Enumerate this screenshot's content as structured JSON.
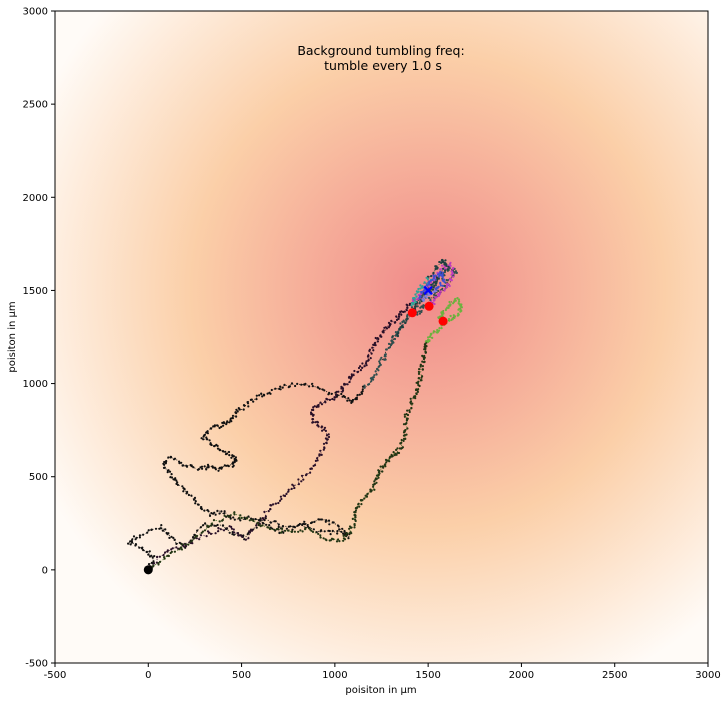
{
  "chart_data": {
    "type": "scatter",
    "title": "",
    "xlabel": "poisiton in µm",
    "ylabel": "poisiton in µm",
    "xlim": [
      -500,
      3000
    ],
    "ylim": [
      -500,
      3000
    ],
    "xticks": [
      -500,
      0,
      500,
      1000,
      1500,
      2000,
      2500,
      3000
    ],
    "yticks": [
      -500,
      0,
      500,
      1000,
      1500,
      2000,
      2500,
      3000
    ],
    "grid": false,
    "annotation_lines": [
      "Background tumbling freq:",
      "tumble every 1.0 s"
    ],
    "background": {
      "kind": "radial-gradient",
      "center": [
        1500,
        1500
      ],
      "inner_color": "#f08a8a",
      "mid_color": "#fbcfa8",
      "outer_color": "#fffbf7"
    },
    "target": {
      "x": 1500,
      "y": 1500,
      "marker": "X",
      "color": "#0000ff"
    },
    "start": {
      "x": 0,
      "y": 0,
      "color": "#000000"
    },
    "end_points": [
      {
        "x": 1415,
        "y": 1380,
        "color": "#ff0000"
      },
      {
        "x": 1505,
        "y": 1415,
        "color": "#ff0000"
      },
      {
        "x": 1580,
        "y": 1335,
        "color": "#ff0000"
      }
    ],
    "series": [
      {
        "color": "#1c1c1c",
        "dark_color": "#111111",
        "light_color": "#2f4f4f",
        "points": [
          [
            0,
            0
          ],
          [
            30,
            60
          ],
          [
            -20,
            110
          ],
          [
            -110,
            150
          ],
          [
            -40,
            190
          ],
          [
            70,
            230
          ],
          [
            120,
            170
          ],
          [
            200,
            120
          ],
          [
            290,
            240
          ],
          [
            380,
            240
          ],
          [
            460,
            200
          ],
          [
            520,
            170
          ],
          [
            610,
            260
          ],
          [
            700,
            200
          ],
          [
            820,
            230
          ],
          [
            950,
            200
          ],
          [
            1040,
            200
          ],
          [
            1080,
            180
          ],
          [
            1010,
            240
          ],
          [
            920,
            270
          ],
          [
            820,
            240
          ],
          [
            720,
            230
          ],
          [
            640,
            270
          ],
          [
            560,
            280
          ],
          [
            470,
            270
          ],
          [
            400,
            310
          ],
          [
            330,
            300
          ],
          [
            260,
            350
          ],
          [
            210,
            420
          ],
          [
            150,
            470
          ],
          [
            110,
            520
          ],
          [
            80,
            580
          ],
          [
            130,
            600
          ],
          [
            200,
            560
          ],
          [
            280,
            540
          ],
          [
            330,
            560
          ],
          [
            380,
            540
          ],
          [
            440,
            560
          ],
          [
            470,
            590
          ],
          [
            430,
            620
          ],
          [
            380,
            650
          ],
          [
            330,
            680
          ],
          [
            290,
            720
          ],
          [
            330,
            760
          ],
          [
            400,
            780
          ],
          [
            440,
            800
          ],
          [
            470,
            840
          ],
          [
            520,
            880
          ],
          [
            580,
            930
          ],
          [
            660,
            960
          ],
          [
            750,
            990
          ],
          [
            850,
            1000
          ],
          [
            950,
            960
          ],
          [
            1040,
            930
          ],
          [
            1100,
            900
          ],
          [
            1140,
            950
          ],
          [
            1180,
            1000
          ],
          [
            1210,
            1050
          ],
          [
            1240,
            1100
          ],
          [
            1270,
            1150
          ],
          [
            1300,
            1210
          ],
          [
            1320,
            1250
          ],
          [
            1350,
            1300
          ],
          [
            1380,
            1350
          ],
          [
            1430,
            1410
          ],
          [
            1470,
            1460
          ],
          [
            1500,
            1500
          ],
          [
            1560,
            1560
          ],
          [
            1610,
            1620
          ],
          [
            1650,
            1600
          ],
          [
            1600,
            1540
          ],
          [
            1540,
            1480
          ],
          [
            1480,
            1420
          ],
          [
            1450,
            1380
          ],
          [
            1415,
            1380
          ]
        ]
      },
      {
        "color": "#3b1f3a",
        "dark_color": "#2a1028",
        "light_color": "#c03cc0",
        "points": [
          [
            0,
            0
          ],
          [
            60,
            80
          ],
          [
            160,
            120
          ],
          [
            230,
            150
          ],
          [
            330,
            200
          ],
          [
            440,
            230
          ],
          [
            520,
            170
          ],
          [
            590,
            250
          ],
          [
            650,
            330
          ],
          [
            720,
            390
          ],
          [
            780,
            450
          ],
          [
            850,
            520
          ],
          [
            900,
            590
          ],
          [
            940,
            650
          ],
          [
            960,
            720
          ],
          [
            930,
            770
          ],
          [
            880,
            800
          ],
          [
            870,
            850
          ],
          [
            920,
            890
          ],
          [
            980,
            920
          ],
          [
            1030,
            960
          ],
          [
            1060,
            1000
          ],
          [
            1100,
            1050
          ],
          [
            1150,
            1090
          ],
          [
            1180,
            1140
          ],
          [
            1200,
            1190
          ],
          [
            1230,
            1240
          ],
          [
            1260,
            1280
          ],
          [
            1300,
            1320
          ],
          [
            1340,
            1360
          ],
          [
            1380,
            1400
          ],
          [
            1420,
            1440
          ],
          [
            1460,
            1480
          ],
          [
            1500,
            1530
          ],
          [
            1540,
            1580
          ],
          [
            1580,
            1620
          ],
          [
            1620,
            1640
          ],
          [
            1640,
            1590
          ],
          [
            1610,
            1530
          ],
          [
            1560,
            1480
          ],
          [
            1530,
            1440
          ],
          [
            1505,
            1415
          ]
        ]
      },
      {
        "color": "#3d6b1f",
        "dark_color": "#233514",
        "light_color": "#6db33f",
        "points": [
          [
            0,
            0
          ],
          [
            90,
            60
          ],
          [
            180,
            120
          ],
          [
            270,
            190
          ],
          [
            360,
            260
          ],
          [
            460,
            300
          ],
          [
            560,
            260
          ],
          [
            660,
            220
          ],
          [
            760,
            200
          ],
          [
            860,
            220
          ],
          [
            950,
            170
          ],
          [
            1030,
            160
          ],
          [
            1080,
            200
          ],
          [
            1100,
            250
          ],
          [
            1110,
            300
          ],
          [
            1130,
            350
          ],
          [
            1170,
            390
          ],
          [
            1200,
            430
          ],
          [
            1220,
            480
          ],
          [
            1240,
            520
          ],
          [
            1260,
            560
          ],
          [
            1290,
            590
          ],
          [
            1320,
            620
          ],
          [
            1350,
            650
          ],
          [
            1370,
            700
          ],
          [
            1380,
            760
          ],
          [
            1380,
            820
          ],
          [
            1400,
            870
          ],
          [
            1420,
            920
          ],
          [
            1440,
            960
          ],
          [
            1450,
            1010
          ],
          [
            1460,
            1060
          ],
          [
            1470,
            1110
          ],
          [
            1480,
            1160
          ],
          [
            1490,
            1200
          ],
          [
            1500,
            1230
          ],
          [
            1520,
            1260
          ],
          [
            1550,
            1290
          ],
          [
            1580,
            1320
          ],
          [
            1620,
            1350
          ],
          [
            1660,
            1380
          ],
          [
            1680,
            1420
          ],
          [
            1650,
            1450
          ],
          [
            1610,
            1420
          ],
          [
            1580,
            1380
          ],
          [
            1560,
            1350
          ],
          [
            1580,
            1335
          ]
        ]
      },
      {
        "color": "#2d5f5f",
        "dark_color": "#1f3f3f",
        "light_color": "#2aa59a",
        "points": [
          [
            1320,
            1250
          ],
          [
            1360,
            1300
          ],
          [
            1400,
            1360
          ],
          [
            1440,
            1420
          ],
          [
            1480,
            1470
          ],
          [
            1520,
            1520
          ],
          [
            1560,
            1570
          ],
          [
            1600,
            1630
          ],
          [
            1580,
            1660
          ],
          [
            1540,
            1620
          ],
          [
            1500,
            1560
          ],
          [
            1460,
            1510
          ],
          [
            1430,
            1460
          ],
          [
            1410,
            1420
          ]
        ]
      },
      {
        "color": "#3f4fd0",
        "dark_color": "#3f4fd0",
        "light_color": "#7f7fe0",
        "points": [
          [
            1450,
            1470
          ],
          [
            1480,
            1500
          ],
          [
            1510,
            1540
          ],
          [
            1540,
            1580
          ],
          [
            1570,
            1600
          ],
          [
            1590,
            1560
          ],
          [
            1560,
            1520
          ],
          [
            1530,
            1490
          ],
          [
            1500,
            1470
          ],
          [
            1470,
            1450
          ]
        ]
      }
    ]
  }
}
